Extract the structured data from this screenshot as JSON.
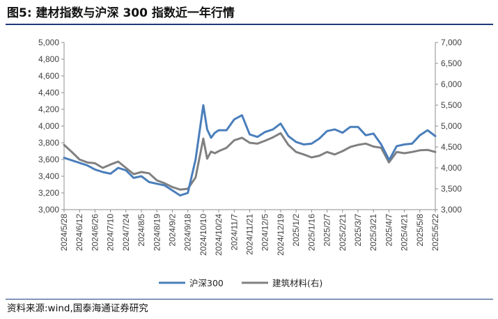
{
  "figure": {
    "title": "图5:  建材指数与沪深 300 指数近一年行情",
    "source": "资料来源:wind,国泰海通证券研究"
  },
  "chart_data": {
    "type": "line",
    "title": "",
    "xlabel": "",
    "ylabel": "",
    "x_ticks": [
      "2024/5/28",
      "2024/6/12",
      "2024/6/26",
      "2024/7/10",
      "2024/7/24",
      "2024/8/5",
      "2024/8/19",
      "2024/9/2",
      "2024/9/18",
      "2024/10/10",
      "2024/10/24",
      "2024/11/7",
      "2024/11/21",
      "2024/12/5",
      "2024/12/19",
      "2025/1/2",
      "2025/1/16",
      "2025/2/7",
      "2025/2/21",
      "2025/3/7",
      "2025/3/21",
      "2025/4/7",
      "2025/4/21",
      "2025/5/8",
      "2025/5/22"
    ],
    "y_left": {
      "min": 3000,
      "max": 5000,
      "step": 200,
      "ticks": [
        "3,000",
        "3,200",
        "3,400",
        "3,600",
        "3,800",
        "4,000",
        "4,200",
        "4,400",
        "4,600",
        "4,800",
        "5,000"
      ]
    },
    "y_right": {
      "min": 3000,
      "max": 7000,
      "step": 500,
      "ticks": [
        "3,000",
        "3,500",
        "4,000",
        "4,500",
        "5,000",
        "5,500",
        "6,000",
        "6,500",
        "7,000"
      ]
    },
    "grid": false,
    "legend_position": "bottom",
    "series": [
      {
        "name": "沪深300",
        "axis": "left",
        "color": "#4a7ebb",
        "x": [
          0,
          0.5,
          1,
          1.5,
          2,
          2.5,
          3,
          3.5,
          4,
          4.5,
          5,
          5.5,
          6,
          6.5,
          7,
          7.5,
          8,
          8.5,
          9,
          9.25,
          9.5,
          9.75,
          10,
          10.5,
          11,
          11.5,
          12,
          12.5,
          13,
          13.5,
          14,
          14.5,
          15,
          15.5,
          16,
          16.5,
          17,
          17.5,
          18,
          18.5,
          19,
          19.5,
          20,
          20.5,
          21,
          21.1,
          21.5,
          22,
          22.5,
          23,
          23.5,
          24
        ],
        "y": [
          3620,
          3590,
          3560,
          3530,
          3480,
          3450,
          3430,
          3500,
          3470,
          3380,
          3400,
          3330,
          3310,
          3290,
          3230,
          3170,
          3200,
          3600,
          4250,
          3960,
          3860,
          3920,
          3950,
          3950,
          4080,
          4130,
          3900,
          3870,
          3930,
          3960,
          4030,
          3880,
          3810,
          3780,
          3790,
          3850,
          3940,
          3960,
          3920,
          3990,
          3990,
          3890,
          3910,
          3780,
          3600,
          3620,
          3760,
          3780,
          3790,
          3890,
          3950,
          3880
        ]
      },
      {
        "name": "建筑材料(右)",
        "axis": "right",
        "color": "#808080",
        "x": [
          0,
          0.5,
          1,
          1.5,
          2,
          2.5,
          3,
          3.5,
          4,
          4.5,
          5,
          5.5,
          6,
          6.5,
          7,
          7.5,
          8,
          8.5,
          9,
          9.25,
          9.5,
          9.75,
          10,
          10.5,
          11,
          11.5,
          12,
          12.5,
          13,
          13.5,
          14,
          14.5,
          15,
          15.5,
          16,
          16.5,
          17,
          17.5,
          18,
          18.5,
          19,
          19.5,
          20,
          20.5,
          21,
          21.1,
          21.5,
          22,
          22.5,
          23,
          23.5,
          24
        ],
        "y": [
          4550,
          4380,
          4200,
          4130,
          4110,
          4000,
          4080,
          4150,
          4000,
          3850,
          3900,
          3870,
          3700,
          3630,
          3540,
          3480,
          3500,
          3770,
          4700,
          4220,
          4390,
          4350,
          4400,
          4480,
          4660,
          4720,
          4600,
          4580,
          4650,
          4730,
          4830,
          4550,
          4380,
          4320,
          4250,
          4290,
          4380,
          4320,
          4400,
          4500,
          4550,
          4580,
          4510,
          4480,
          4130,
          4180,
          4380,
          4350,
          4380,
          4420,
          4430,
          4380
        ]
      }
    ]
  }
}
